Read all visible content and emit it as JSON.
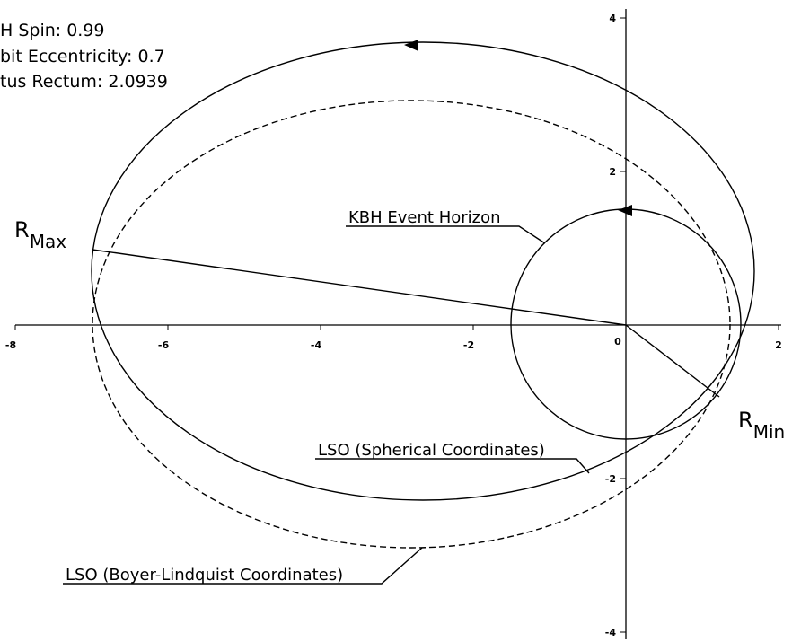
{
  "info": [
    "H Spin: 0.99",
    "bit Eccentricity: 0.7",
    "tus Rectum: 2.0939"
  ],
  "labels": {
    "r_max": "R",
    "r_max_sub": "Max",
    "r_min": "R",
    "r_min_sub": "Min",
    "horizon": "KBH Event Horizon",
    "spherical": "LSO (Spherical Coordinates)",
    "boyer": "LSO (Boyer-Lindquist Coordinates)"
  },
  "x_ticks": [
    "-8",
    "-6",
    "-4",
    "-2",
    "0",
    "2"
  ],
  "y_ticks": [
    "4",
    "2",
    "-2",
    "-4"
  ]
}
